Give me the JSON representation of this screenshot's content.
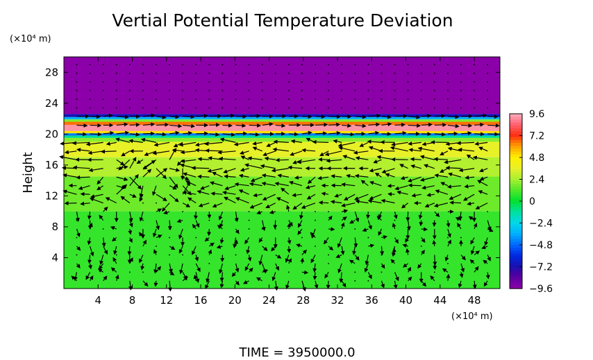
{
  "chart_data": {
    "type": "heatmap",
    "title": "Vertial Potential Temperature Deviation",
    "ylabel": "Height",
    "y_unit": "(×10⁴ m)",
    "x_unit": "(×10⁴ m)",
    "xlim": [
      0,
      51
    ],
    "ylim": [
      0,
      30
    ],
    "x_ticks": [
      4,
      8,
      12,
      16,
      20,
      24,
      28,
      32,
      36,
      40,
      44,
      48
    ],
    "y_ticks": [
      4,
      8,
      12,
      16,
      20,
      24,
      28
    ],
    "colorbar": {
      "ticks": [
        9.6,
        7.2,
        4.8,
        2.4,
        0,
        -2.4,
        -4.8,
        -7.2,
        -9.6
      ],
      "tick_labels": [
        "9.6",
        "7.2",
        "4.8",
        "2.4",
        "0",
        "−2.4",
        "−4.8",
        "−7.2",
        "−9.6"
      ],
      "range": [
        -9.6,
        9.6
      ]
    },
    "bands": [
      {
        "y0": 22.6,
        "y1": 30.0,
        "value": -9.6
      },
      {
        "y0": 22.2,
        "y1": 22.6,
        "value": -7.0
      },
      {
        "y0": 21.9,
        "y1": 22.2,
        "value": -3.5
      },
      {
        "y0": 21.6,
        "y1": 21.9,
        "value": 1.8
      },
      {
        "y0": 21.2,
        "y1": 21.6,
        "value": 6.5
      },
      {
        "y0": 20.4,
        "y1": 21.2,
        "value": 9.2
      },
      {
        "y0": 20.1,
        "y1": 20.4,
        "value": 5.0
      },
      {
        "y0": 19.8,
        "y1": 20.1,
        "value": -4.5
      },
      {
        "y0": 19.5,
        "y1": 19.8,
        "value": -1.0
      },
      {
        "y0": 19.0,
        "y1": 19.5,
        "value": 2.0
      },
      {
        "y0": 17.0,
        "y1": 19.0,
        "value": 3.6
      },
      {
        "y0": 14.5,
        "y1": 17.0,
        "value": 2.6
      },
      {
        "y0": 10.0,
        "y1": 14.5,
        "value": 1.6
      },
      {
        "y0": 0.0,
        "y1": 10.0,
        "value": 0.8
      }
    ],
    "vectors_note": "wind vector field over grid",
    "footer": "TIME = 3950000.0"
  }
}
